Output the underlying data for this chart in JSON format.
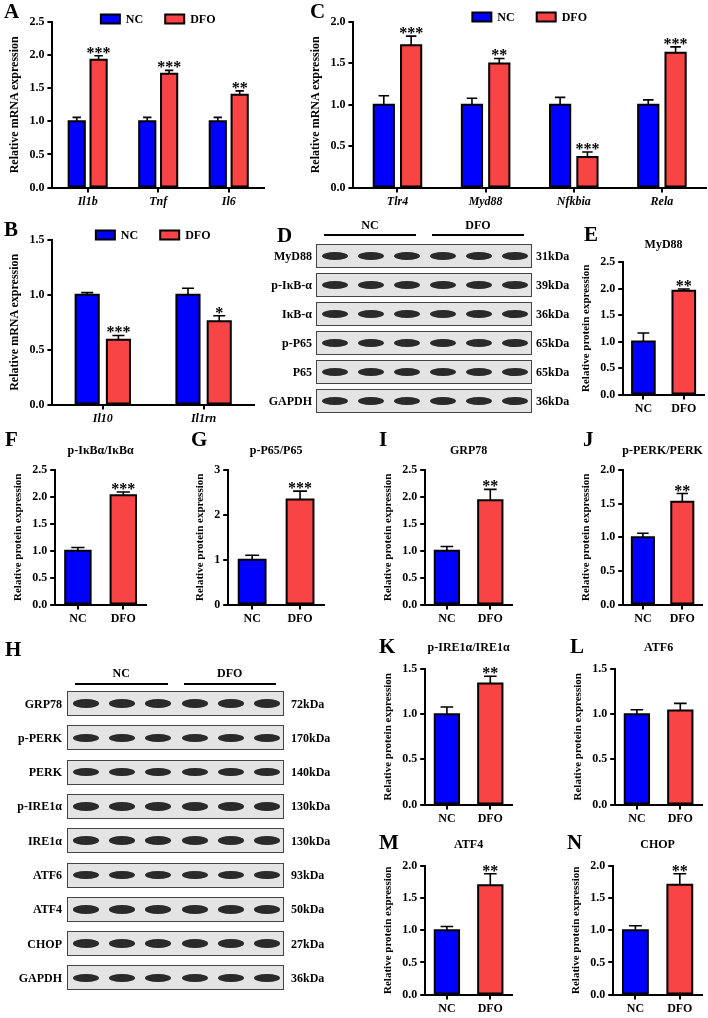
{
  "chart_data": [
    {
      "type": "bar",
      "ylabel": "Relative mRNA expression",
      "categories": [
        "Il1b",
        "Tnf",
        "Il6"
      ],
      "series": [
        {
          "name": "NC",
          "color": "#0000ff",
          "values": [
            1.0,
            1.0,
            1.0
          ],
          "errors": [
            [
              1.0,
              1.06
            ],
            [
              1.0,
              1.06
            ],
            [
              1.0,
              1.06
            ]
          ]
        },
        {
          "name": "DFO",
          "color": "#f84444",
          "values": [
            1.93,
            1.72,
            1.4
          ],
          "errors": [
            [
              1.93,
              1.99
            ],
            [
              1.72,
              1.77
            ],
            [
              1.4,
              1.46
            ]
          ]
        }
      ],
      "ylim": [
        0,
        2.5
      ],
      "yticks": [
        {
          "value": 0,
          "label": "0.0"
        },
        {
          "value": 0.5,
          "label": "0.5"
        },
        {
          "value": 1,
          "label": "1.0"
        },
        {
          "value": 1.5,
          "label": "1.5"
        },
        {
          "value": 2,
          "label": "2.0"
        },
        {
          "value": 2.5,
          "label": "2.5"
        }
      ],
      "legend": "top",
      "annotations": [
        "A",
        {
          "text": "***",
          "x": "Il1b",
          "y": 1.93
        },
        {
          "text": "***",
          "x": "Tnf",
          "y": 1.72
        },
        {
          "text": "**",
          "x": "Il6",
          "y": 1.4
        }
      ]
    },
    {
      "type": "bar",
      "ylabel": "Relative mRNA expression",
      "categories": [
        "Tlr4",
        "Myd88",
        "Nfkbia",
        "Rela"
      ],
      "series": [
        {
          "name": "NC",
          "color": "#0000ff",
          "values": [
            1.0,
            1.0,
            1.0,
            1.0
          ],
          "errors": [
            [
              1.0,
              1.11
            ],
            [
              1.0,
              1.08
            ],
            [
              1.0,
              1.09
            ],
            [
              1.0,
              1.06
            ]
          ]
        },
        {
          "name": "DFO",
          "color": "#f84444",
          "values": [
            1.72,
            1.5,
            0.37,
            1.63
          ],
          "errors": [
            [
              1.72,
              1.83
            ],
            [
              1.5,
              1.56
            ],
            [
              0.37,
              0.43
            ],
            [
              1.63,
              1.7
            ]
          ]
        }
      ],
      "ylim": [
        0,
        2.0
      ],
      "yticks": [
        {
          "value": 0,
          "label": "0.0"
        },
        {
          "value": 0.5,
          "label": "0.5"
        },
        {
          "value": 1,
          "label": "1.0"
        },
        {
          "value": 1.5,
          "label": "1.5"
        },
        {
          "value": 2,
          "label": "2.0"
        }
      ],
      "legend": "top",
      "annotations": [
        "C",
        {
          "text": "***",
          "x": "Tlr4",
          "y": 1.72
        },
        {
          "text": "**",
          "x": "Myd88",
          "y": 1.5
        },
        {
          "text": "***",
          "x": "Nfkbia",
          "y": 0.37
        },
        {
          "text": "***",
          "x": "Rela",
          "y": 1.63
        }
      ]
    },
    {
      "type": "bar",
      "ylabel": "Relative mRNA expression",
      "categories": [
        "Il10",
        "Il1rn"
      ],
      "series": [
        {
          "name": "NC",
          "color": "#0000ff",
          "values": [
            1.0,
            1.0
          ],
          "errors": [
            [
              1.0,
              1.02
            ],
            [
              1.0,
              1.06
            ]
          ]
        },
        {
          "name": "DFO",
          "color": "#f84444",
          "values": [
            0.59,
            0.76
          ],
          "errors": [
            [
              0.59,
              0.63
            ],
            [
              0.76,
              0.81
            ]
          ]
        }
      ],
      "ylim": [
        0,
        1.5
      ],
      "yticks": [
        {
          "value": 0,
          "label": "0.0"
        },
        {
          "value": 0.5,
          "label": "0.5"
        },
        {
          "value": 1,
          "label": "1.0"
        },
        {
          "value": 1.5,
          "label": "1.5"
        }
      ],
      "legend": "top",
      "annotations": [
        "B",
        {
          "text": "***",
          "x": "Il10",
          "y": 0.59
        },
        {
          "text": "*",
          "x": "Il1rn",
          "y": 0.76
        }
      ]
    },
    {
      "type": "other",
      "categories": [
        "NC",
        "DFO"
      ],
      "y_categories": [
        "MyD88",
        "p-IκB-α",
        "IκB-α",
        "p-P65",
        "P65",
        "GAPDH"
      ],
      "y2_categories": [
        "31kDa",
        "39kDa",
        "36kDa",
        "65kDa",
        "65kDa",
        "36kDa"
      ],
      "annotations": [
        "D"
      ]
    },
    {
      "type": "bar",
      "title": "MyD88",
      "ylabel": "Relative protein expression",
      "categories": [
        "NC",
        "DFO"
      ],
      "values": [
        1.0,
        1.96
      ],
      "colors": [
        "#0000ff",
        "#f84444"
      ],
      "errors": [
        [
          1.0,
          1.16
        ],
        [
          1.96,
          1.99
        ]
      ],
      "ylim": [
        0,
        2.5
      ],
      "yticks": [
        {
          "value": 0,
          "label": "0.0"
        },
        {
          "value": 0.5,
          "label": "0.5"
        },
        {
          "value": 1,
          "label": "1.0"
        },
        {
          "value": 1.5,
          "label": "1.5"
        },
        {
          "value": 2,
          "label": "2.0"
        },
        {
          "value": 2.5,
          "label": "2.5"
        }
      ],
      "annotations": [
        "E",
        {
          "text": "**",
          "x": "DFO",
          "y": 1.96
        }
      ]
    },
    {
      "type": "bar",
      "title": "p-IκBα/IκBα",
      "ylabel": "Relative protein expression",
      "categories": [
        "NC",
        "DFO"
      ],
      "values": [
        1.0,
        2.03
      ],
      "colors": [
        "#0000ff",
        "#f84444"
      ],
      "errors": [
        [
          1.0,
          1.06
        ],
        [
          2.03,
          2.09
        ]
      ],
      "ylim": [
        0,
        2.5
      ],
      "yticks": [
        {
          "value": 0,
          "label": "0.0"
        },
        {
          "value": 0.5,
          "label": "0.5"
        },
        {
          "value": 1,
          "label": "1.0"
        },
        {
          "value": 1.5,
          "label": "1.5"
        },
        {
          "value": 2,
          "label": "2.0"
        },
        {
          "value": 2.5,
          "label": "2.5"
        }
      ],
      "annotations": [
        "F",
        {
          "text": "***",
          "x": "DFO",
          "y": 2.03
        }
      ]
    },
    {
      "type": "bar",
      "title": "p-P65/P65",
      "ylabel": "Relative protein expression",
      "categories": [
        "NC",
        "DFO"
      ],
      "values": [
        1.0,
        2.34
      ],
      "colors": [
        "#0000ff",
        "#f84444"
      ],
      "errors": [
        [
          1.0,
          1.1
        ],
        [
          2.34,
          2.53
        ]
      ],
      "ylim": [
        0,
        3
      ],
      "yticks": [
        0,
        1,
        2,
        3
      ],
      "annotations": [
        "G",
        {
          "text": "***",
          "x": "DFO",
          "y": 2.34
        }
      ]
    },
    {
      "type": "bar",
      "title": "GRP78",
      "ylabel": "Relative protein expression",
      "categories": [
        "NC",
        "DFO"
      ],
      "values": [
        1.0,
        1.94
      ],
      "colors": [
        "#0000ff",
        "#f84444"
      ],
      "errors": [
        [
          1.0,
          1.08
        ],
        [
          1.94,
          2.14
        ]
      ],
      "ylim": [
        0,
        2.5
      ],
      "yticks": [
        {
          "value": 0,
          "label": "0.0"
        },
        {
          "value": 0.5,
          "label": "0.5"
        },
        {
          "value": 1,
          "label": "1.0"
        },
        {
          "value": 1.5,
          "label": "1.5"
        },
        {
          "value": 2,
          "label": "2.0"
        },
        {
          "value": 2.5,
          "label": "2.5"
        }
      ],
      "annotations": [
        "I",
        {
          "text": "**",
          "x": "DFO",
          "y": 1.94
        }
      ]
    },
    {
      "type": "bar",
      "title": "p-PERK/PERK",
      "ylabel": "Relative protein expression",
      "categories": [
        "NC",
        "DFO"
      ],
      "values": [
        1.0,
        1.53
      ],
      "colors": [
        "#0000ff",
        "#f84444"
      ],
      "errors": [
        [
          1.0,
          1.06
        ],
        [
          1.53,
          1.65
        ]
      ],
      "ylim": [
        0,
        2.0
      ],
      "yticks": [
        {
          "value": 0,
          "label": "0.0"
        },
        {
          "value": 0.5,
          "label": "0.5"
        },
        {
          "value": 1,
          "label": "1.0"
        },
        {
          "value": 1.5,
          "label": "1.5"
        },
        {
          "value": 2,
          "label": "2.0"
        }
      ],
      "annotations": [
        "J",
        {
          "text": "**",
          "x": "DFO",
          "y": 1.53
        }
      ]
    },
    {
      "type": "other",
      "categories": [
        "NC",
        "DFO"
      ],
      "y_categories": [
        "GRP78",
        "p-PERK",
        "PERK",
        "p-IRE1α",
        "IRE1α",
        "ATF6",
        "ATF4",
        "CHOP",
        "GAPDH"
      ],
      "y2_categories": [
        "72kDa",
        "170kDa",
        "140kDa",
        "130kDa",
        "130kDa",
        "93kDa",
        "50kDa",
        "27kDa",
        "36kDa"
      ],
      "annotations": [
        "H"
      ]
    },
    {
      "type": "bar",
      "title": "p-IRE1α/IRE1α",
      "ylabel": "Relative protein expression",
      "categories": [
        "NC",
        "DFO"
      ],
      "values": [
        1.0,
        1.34
      ],
      "colors": [
        "#0000ff",
        "#f84444"
      ],
      "errors": [
        [
          1.0,
          1.08
        ],
        [
          1.34,
          1.42
        ]
      ],
      "ylim": [
        0,
        1.5
      ],
      "yticks": [
        {
          "value": 0,
          "label": "0.0"
        },
        {
          "value": 0.5,
          "label": "0.5"
        },
        {
          "value": 1,
          "label": "1.0"
        },
        {
          "value": 1.5,
          "label": "1.5"
        }
      ],
      "annotations": [
        "K",
        {
          "text": "**",
          "x": "DFO",
          "y": 1.34
        }
      ]
    },
    {
      "type": "bar",
      "title": "ATF6",
      "ylabel": "Relative protein expression",
      "categories": [
        "NC",
        "DFO"
      ],
      "values": [
        1.0,
        1.04
      ],
      "colors": [
        "#0000ff",
        "#f84444"
      ],
      "errors": [
        [
          1.0,
          1.05
        ],
        [
          1.04,
          1.12
        ]
      ],
      "ylim": [
        0,
        1.5
      ],
      "yticks": [
        {
          "value": 0,
          "label": "0.0"
        },
        {
          "value": 0.5,
          "label": "0.5"
        },
        {
          "value": 1,
          "label": "1.0"
        },
        {
          "value": 1.5,
          "label": "1.5"
        }
      ],
      "annotations": [
        "L"
      ]
    },
    {
      "type": "bar",
      "title": "ATF4",
      "ylabel": "Relative protein expression",
      "categories": [
        "NC",
        "DFO"
      ],
      "values": [
        1.0,
        1.7
      ],
      "colors": [
        "#0000ff",
        "#f84444"
      ],
      "errors": [
        [
          1.0,
          1.06
        ],
        [
          1.7,
          1.88
        ]
      ],
      "ylim": [
        0,
        2.0
      ],
      "yticks": [
        {
          "value": 0,
          "label": "0.0"
        },
        {
          "value": 0.5,
          "label": "0.5"
        },
        {
          "value": 1,
          "label": "1.0"
        },
        {
          "value": 1.5,
          "label": "1.5"
        },
        {
          "value": 2,
          "label": "2.0"
        }
      ],
      "annotations": [
        "M",
        {
          "text": "**",
          "x": "DFO",
          "y": 1.7
        }
      ]
    },
    {
      "type": "bar",
      "title": "CHOP",
      "ylabel": "Relative protein expression",
      "categories": [
        "NC",
        "DFO"
      ],
      "values": [
        1.0,
        1.71
      ],
      "colors": [
        "#0000ff",
        "#f84444"
      ],
      "errors": [
        [
          1.0,
          1.07
        ],
        [
          1.71,
          1.88
        ]
      ],
      "ylim": [
        0,
        2.0
      ],
      "yticks": [
        {
          "value": 0,
          "label": "0.0"
        },
        {
          "value": 0.5,
          "label": "0.5"
        },
        {
          "value": 1,
          "label": "1.0"
        },
        {
          "value": 1.5,
          "label": "1.5"
        },
        {
          "value": 2,
          "label": "2.0"
        }
      ],
      "annotations": [
        "N",
        {
          "text": "**",
          "x": "DFO",
          "y": 1.71
        }
      ]
    }
  ]
}
